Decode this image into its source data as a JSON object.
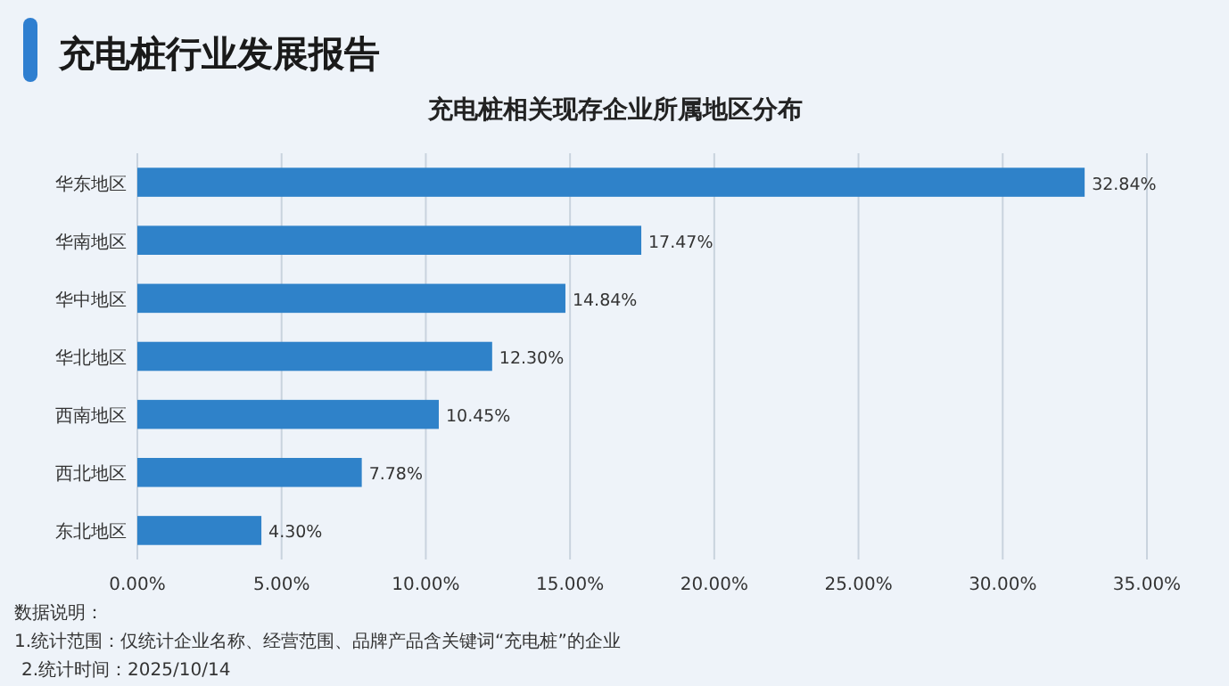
{
  "chart_data": {
    "type": "bar",
    "orientation": "horizontal",
    "title": "充电桩行业发展报告",
    "subtitle": "充电桩相关现存企业所属地区分布",
    "categories": [
      "华东地区",
      "华南地区",
      "华中地区",
      "华北地区",
      "西南地区",
      "西北地区",
      "东北地区"
    ],
    "values": [
      32.84,
      17.47,
      14.84,
      12.3,
      10.45,
      7.78,
      4.3
    ],
    "value_labels": [
      "32.84%",
      "17.47%",
      "14.84%",
      "12.30%",
      "10.45%",
      "7.78%",
      "4.30%"
    ],
    "color": "#2f82c9",
    "xlim": [
      0,
      35
    ],
    "xticks": [
      {
        "value": 0,
        "label": "0.00%"
      },
      {
        "value": 5,
        "label": "5.00%"
      },
      {
        "value": 10,
        "label": "10.00%"
      },
      {
        "value": 15,
        "label": "15.00%"
      },
      {
        "value": 20,
        "label": "20.00%"
      },
      {
        "value": 25,
        "label": "25.00%"
      },
      {
        "value": 30,
        "label": "30.00%"
      },
      {
        "value": 35,
        "label": "35.00%"
      }
    ],
    "grid": "x",
    "annotations": [
      "数据说明：",
      "1.统计范围：仅统计企业名称、经营范围、品牌产品含关键词“充电桩”的企业",
      "2.统计时间：2025/10/14"
    ]
  }
}
